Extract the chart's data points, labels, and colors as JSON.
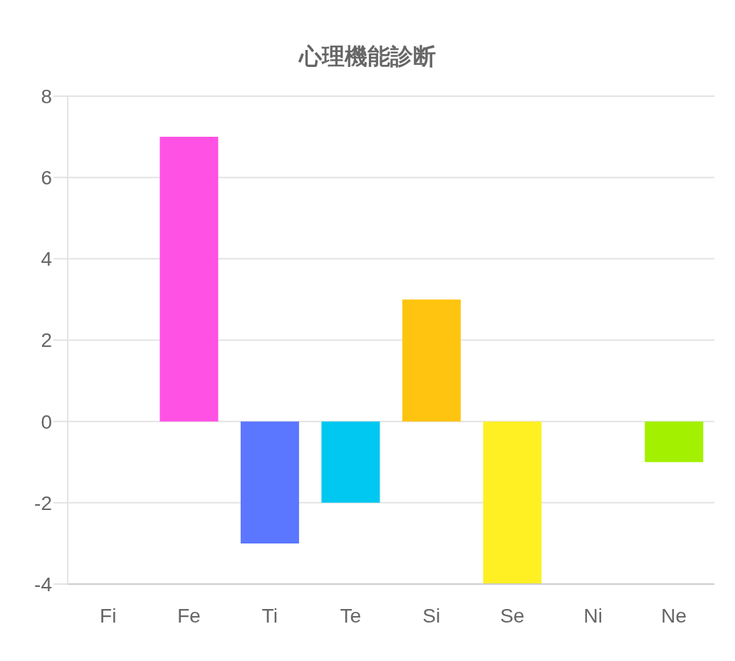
{
  "chart_data": {
    "type": "bar",
    "title": "心理機能診断",
    "categories": [
      "Fi",
      "Fe",
      "Ti",
      "Te",
      "Si",
      "Se",
      "Ni",
      "Ne"
    ],
    "values": [
      0,
      7,
      -3,
      -2,
      3,
      -4,
      0,
      -1
    ],
    "colors": [
      "#ff6384",
      "#ff52e5",
      "#5b76ff",
      "#00c8f0",
      "#ffc40f",
      "#fff024",
      "#9966ff",
      "#a3f000"
    ],
    "ylim": [
      -4,
      8
    ],
    "yticks": [
      -4,
      -2,
      0,
      2,
      4,
      6,
      8
    ],
    "grid": "y",
    "legend": false
  }
}
